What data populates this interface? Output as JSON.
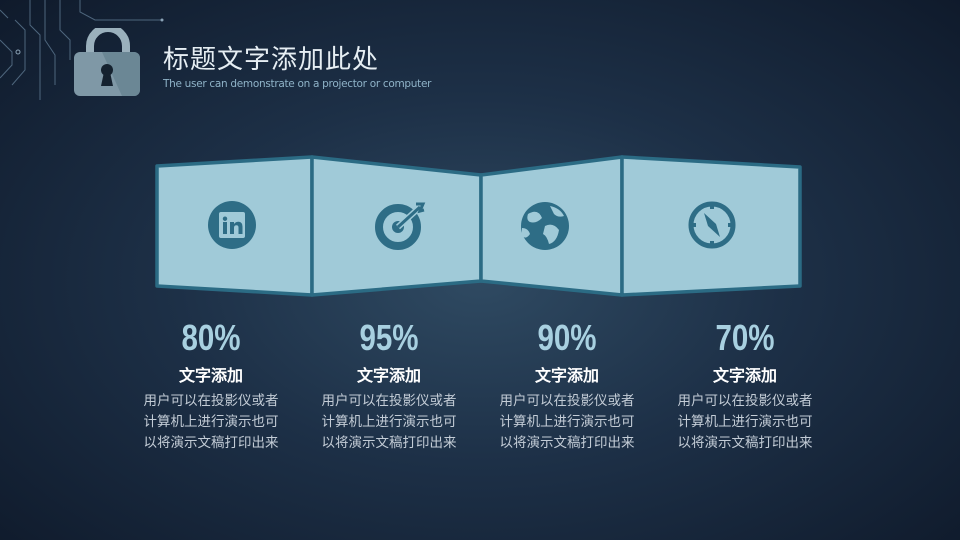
{
  "header": {
    "title": "标题文字添加此处",
    "subtitle": "The user can demonstrate on a projector or computer",
    "logo_icon": "padlock-icon"
  },
  "colors": {
    "panel_fill": "#a0cad8",
    "panel_border": "#2b6b84",
    "icon": "#2e6d86",
    "percent": "#a8d0e0"
  },
  "items": [
    {
      "icon": "linkedin-icon",
      "percent": "80%",
      "heading": "文字添加",
      "lines": [
        "用户可以在投影仪或者",
        "计算机上进行演示也可",
        "以将演示文稿打印出来"
      ]
    },
    {
      "icon": "target-icon",
      "percent": "95%",
      "heading": "文字添加",
      "lines": [
        "用户可以在投影仪或者",
        "计算机上进行演示也可",
        "以将演示文稿打印出来"
      ]
    },
    {
      "icon": "globe-icon",
      "percent": "90%",
      "heading": "文字添加",
      "lines": [
        "用户可以在投影仪或者",
        "计算机上进行演示也可",
        "以将演示文稿打印出来"
      ]
    },
    {
      "icon": "compass-icon",
      "percent": "70%",
      "heading": "文字添加",
      "lines": [
        "用户可以在投影仪或者",
        "计算机上进行演示也可",
        "以将演示文稿打印出来"
      ]
    }
  ]
}
